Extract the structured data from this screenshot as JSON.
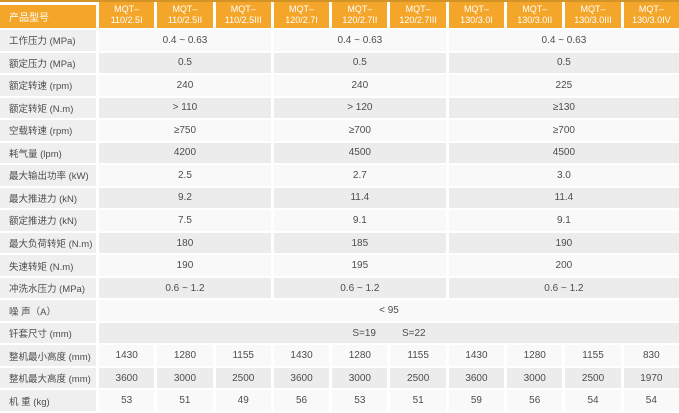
{
  "colors": {
    "header_bg": "#f4a62a",
    "header_text": "#ffffff",
    "label_bg": "#efefef",
    "row_light_bg": "#f9f9f9",
    "row_dark_bg": "#ececec",
    "body_text": "#4d4d4d",
    "top_border": "#d29327"
  },
  "table": {
    "corner_label": "产品型号",
    "columns": [
      {
        "l1": "MQT–",
        "l2": "110/2.5I"
      },
      {
        "l1": "MQT–",
        "l2": "110/2.5II"
      },
      {
        "l1": "MQT–",
        "l2": "110/2.5III"
      },
      {
        "l1": "MQT–",
        "l2": "120/2.7I"
      },
      {
        "l1": "MQT–",
        "l2": "120/2.7II"
      },
      {
        "l1": "MQT–",
        "l2": "120/2.7III"
      },
      {
        "l1": "MQT–",
        "l2": "130/3.0I"
      },
      {
        "l1": "MQT–",
        "l2": "130/3.0II"
      },
      {
        "l1": "MQT–",
        "l2": "130/3.0III"
      },
      {
        "l1": "MQT–",
        "l2": "130/3.0IV"
      }
    ],
    "group_spans": [
      3,
      3,
      4
    ],
    "rows": [
      {
        "label": "工作压力 (MPa)",
        "type": "group",
        "values": [
          "0.4 ~ 0.63",
          "0.4 ~ 0.63",
          "0.4 ~ 0.63"
        ]
      },
      {
        "label": "额定压力 (MPa)",
        "type": "group",
        "values": [
          "0.5",
          "0.5",
          "0.5"
        ]
      },
      {
        "label": "额定转速 (rpm)",
        "type": "group",
        "values": [
          "240",
          "240",
          "225"
        ]
      },
      {
        "label": "额定转矩 (N.m)",
        "type": "group",
        "values": [
          "> 110",
          "> 120",
          "≥130"
        ]
      },
      {
        "label": "空载转速 (rpm)",
        "type": "group",
        "values": [
          "≥750",
          "≥700",
          "≥700"
        ]
      },
      {
        "label": "耗气量 (lpm)",
        "type": "group",
        "values": [
          "4200",
          "4500",
          "4500"
        ]
      },
      {
        "label": "最大输出功率 (kW)",
        "type": "group",
        "values": [
          "2.5",
          "2.7",
          "3.0"
        ]
      },
      {
        "label": "最大推进力 (kN)",
        "type": "group",
        "values": [
          "9.2",
          "11.4",
          "11.4"
        ]
      },
      {
        "label": "额定推进力 (kN)",
        "type": "group",
        "values": [
          "7.5",
          "9.1",
          "9.1"
        ]
      },
      {
        "label": "最大负荷转矩  (N.m)",
        "type": "group",
        "values": [
          "180",
          "185",
          "190"
        ]
      },
      {
        "label": "失速转矩 (N.m)",
        "type": "group",
        "values": [
          "190",
          "195",
          "200"
        ]
      },
      {
        "label": "冲洗水压力 (MPa)",
        "type": "group",
        "values": [
          "0.6 ~ 1.2",
          "0.6 ~ 1.2",
          "0.6 ~ 1.2"
        ]
      },
      {
        "label": "噪 声（A）",
        "type": "full",
        "values": [
          "< 95"
        ]
      },
      {
        "label": "钎套尺寸 (mm)",
        "type": "full",
        "values": [
          "S=19",
          "S=22"
        ]
      },
      {
        "label": "整机最小高度 (mm)",
        "type": "each",
        "values": [
          "1430",
          "1280",
          "1155",
          "1430",
          "1280",
          "1155",
          "1430",
          "1280",
          "1155",
          "830"
        ]
      },
      {
        "label": "整机最大高度 (mm)",
        "type": "each",
        "values": [
          "3600",
          "3000",
          "2500",
          "3600",
          "3000",
          "2500",
          "3600",
          "3000",
          "2500",
          "1970"
        ]
      },
      {
        "label": "机 重 (kg)",
        "type": "each",
        "values": [
          "53",
          "51",
          "49",
          "56",
          "53",
          "51",
          "59",
          "56",
          "54",
          "54"
        ]
      }
    ]
  }
}
